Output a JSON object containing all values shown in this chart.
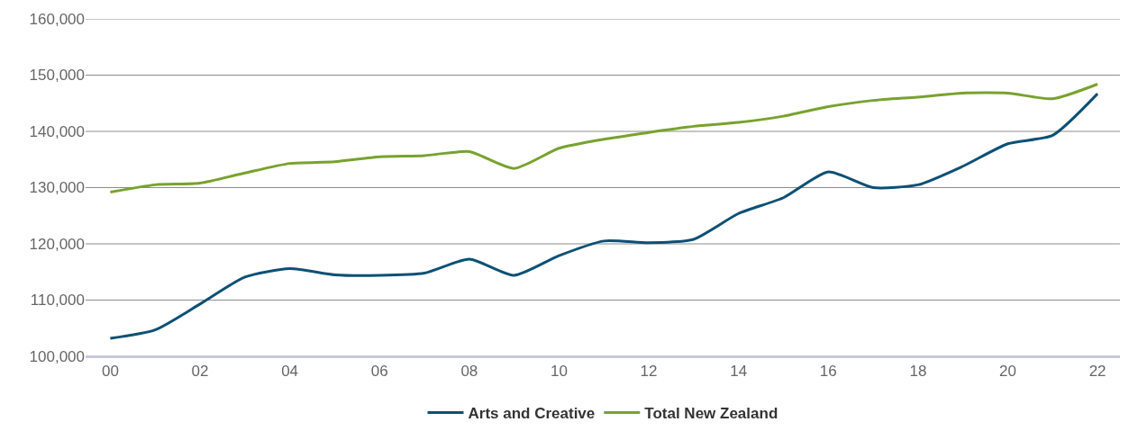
{
  "chart_data": {
    "type": "line",
    "categories": [
      "00",
      null,
      "02",
      null,
      "04",
      null,
      "06",
      null,
      "08",
      null,
      "10",
      null,
      "12",
      null,
      "14",
      null,
      "16",
      null,
      "18",
      null,
      "20",
      null,
      "22"
    ],
    "series": [
      {
        "name": "Arts and Creative",
        "color": "#0c5075",
        "values": [
          103200,
          104700,
          109300,
          114100,
          115600,
          114500,
          114400,
          114800,
          117300,
          114400,
          117900,
          120500,
          120200,
          120800,
          125400,
          128200,
          132800,
          130000,
          130500,
          133800,
          137800,
          139300,
          146700
        ]
      },
      {
        "name": "Total New Zealand",
        "color": "#78a22f",
        "values": [
          129200,
          130500,
          130800,
          132600,
          134300,
          134600,
          135500,
          135700,
          136400,
          133400,
          137000,
          138600,
          139800,
          140900,
          141600,
          142700,
          144400,
          145500,
          146100,
          146800,
          146800,
          145800,
          148400
        ]
      }
    ],
    "ylim": [
      100000,
      160000
    ],
    "yticks": [
      {
        "value": 100000,
        "label": "100,000"
      },
      {
        "value": 110000,
        "label": "110,000"
      },
      {
        "value": 120000,
        "label": "120,000"
      },
      {
        "value": 130000,
        "label": "130,000"
      },
      {
        "value": 140000,
        "label": "140,000"
      },
      {
        "value": 150000,
        "label": "150,000"
      },
      {
        "value": 160000,
        "label": "160,000"
      }
    ],
    "grid": "y",
    "legend": "bottom",
    "marker": "none",
    "line_style": "solid"
  }
}
